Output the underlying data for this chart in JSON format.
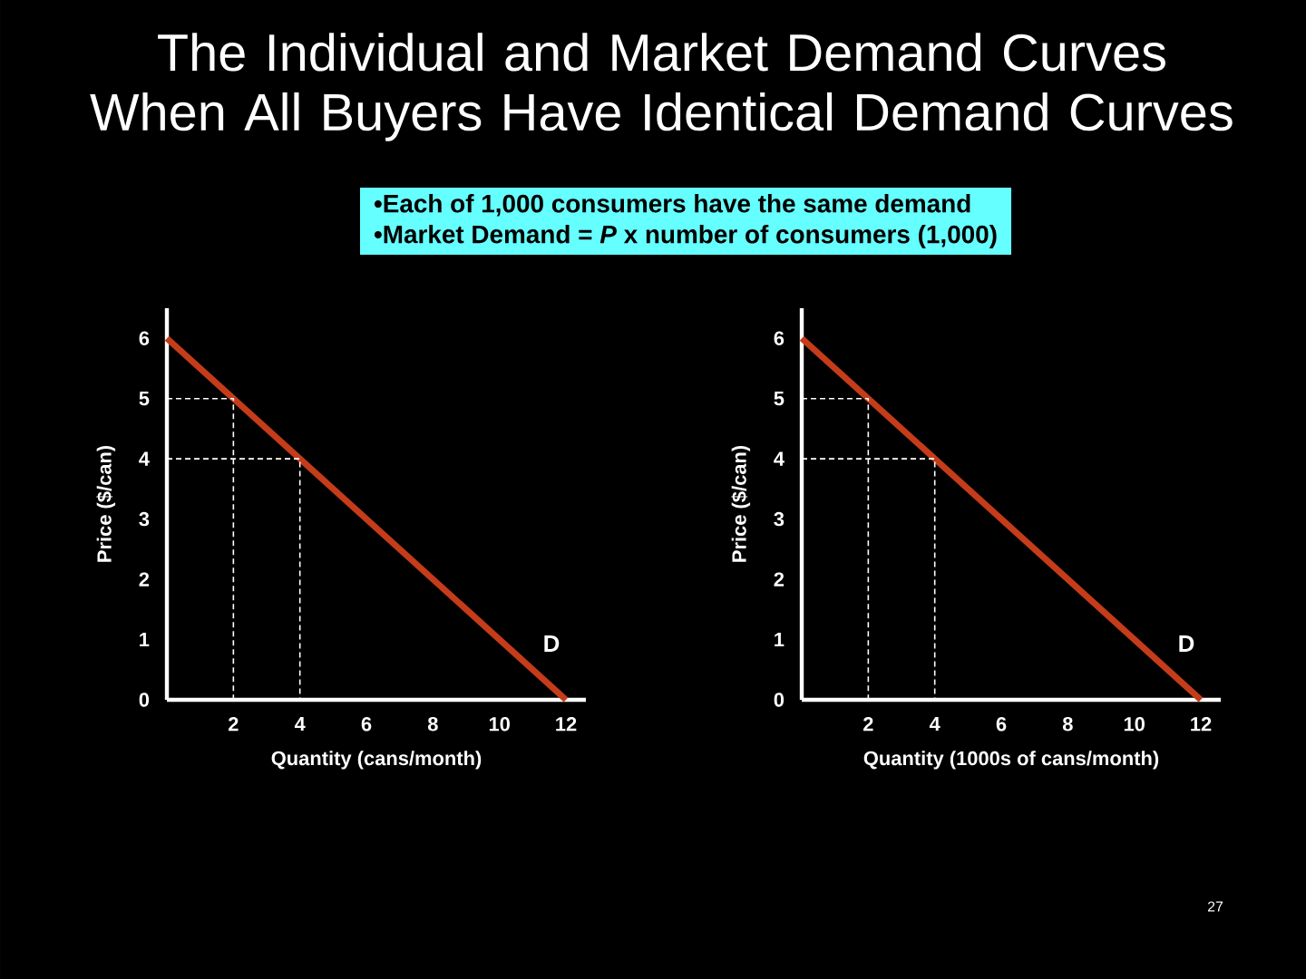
{
  "chart_data": [
    {
      "type": "line",
      "title": "The Individual and Market Demand Curves When All Buyers Have Identical Demand Curves",
      "xlabel": "Quantity (cans/month)",
      "ylabel": "Price ($/can)",
      "xlim": [
        0,
        12.6
      ],
      "ylim": [
        0,
        6.5
      ],
      "xticks": [
        2,
        4,
        6,
        8,
        10,
        12
      ],
      "yticks": [
        0,
        1,
        2,
        3,
        4,
        5,
        6
      ],
      "marker": "none",
      "legend": false,
      "grid": false,
      "series": [
        {
          "name": "D",
          "color": "#c43c1a",
          "line_style": "solid",
          "x": [
            0,
            12
          ],
          "values": [
            6,
            0
          ]
        },
        {
          "color": "#ffffff",
          "line_style": "dashed",
          "x": [
            0,
            2,
            2
          ],
          "values": [
            5,
            5,
            0
          ]
        },
        {
          "color": "#ffffff",
          "line_style": "dashed",
          "x": [
            0,
            4,
            4
          ],
          "values": [
            4,
            4,
            0
          ]
        }
      ],
      "annotations": [
        "•Each of 1,000 consumers have the same demand",
        "•Market Demand = *P* x number of consumers (1,000)"
      ]
    },
    {
      "type": "line",
      "xlabel": "Quantity (1000s of cans/month)",
      "ylabel": "Price ($/can)",
      "xlim": [
        0,
        12.6
      ],
      "ylim": [
        0,
        6.5
      ],
      "xticks": [
        2,
        4,
        6,
        8,
        10,
        12
      ],
      "yticks": [
        0,
        1,
        2,
        3,
        4,
        5,
        6
      ],
      "marker": "none",
      "legend": false,
      "grid": false,
      "series": [
        {
          "name": "D",
          "color": "#c43c1a",
          "line_style": "solid",
          "x": [
            0,
            12
          ],
          "values": [
            6,
            0
          ]
        },
        {
          "color": "#ffffff",
          "line_style": "dashed",
          "x": [
            0,
            2,
            2
          ],
          "values": [
            5,
            5,
            0
          ]
        },
        {
          "color": "#ffffff",
          "line_style": "dashed",
          "x": [
            0,
            4,
            4
          ],
          "values": [
            4,
            4,
            0
          ]
        }
      ],
      "annotations": [
        "27"
      ]
    }
  ]
}
